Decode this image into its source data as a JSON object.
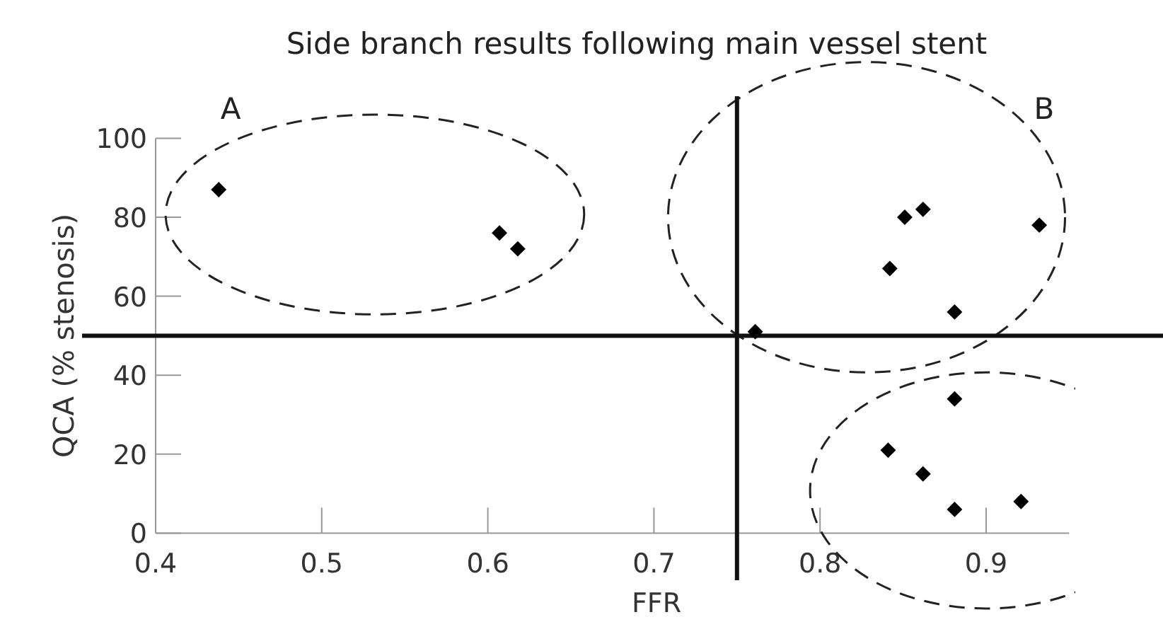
{
  "chart_data": {
    "type": "scatter",
    "title": "Side branch results following main vessel stent",
    "xlabel": "FFR",
    "ylabel": "QCA (% stenosis)",
    "x": [
      0.438,
      0.607,
      0.618,
      0.761,
      0.851,
      0.862,
      0.932,
      0.842,
      0.881,
      0.881,
      0.841,
      0.862,
      0.881,
      0.921
    ],
    "values": [
      87,
      76,
      72,
      51,
      80,
      82,
      78,
      67,
      56,
      34,
      21,
      15,
      6,
      8
    ],
    "color": "#000000",
    "marker": "diamond",
    "xlim": [
      0.4,
      0.95
    ],
    "xticks": [
      0.4,
      0.5,
      0.6,
      0.7,
      0.8,
      0.9
    ],
    "ylim": [
      0,
      100
    ],
    "yticks": [
      0,
      20,
      40,
      60,
      80,
      100
    ],
    "ref_lines": [
      {
        "axis": "x",
        "value": 0.75
      },
      {
        "axis": "y",
        "value": 50
      }
    ],
    "annotations": [
      "A",
      "B"
    ]
  }
}
